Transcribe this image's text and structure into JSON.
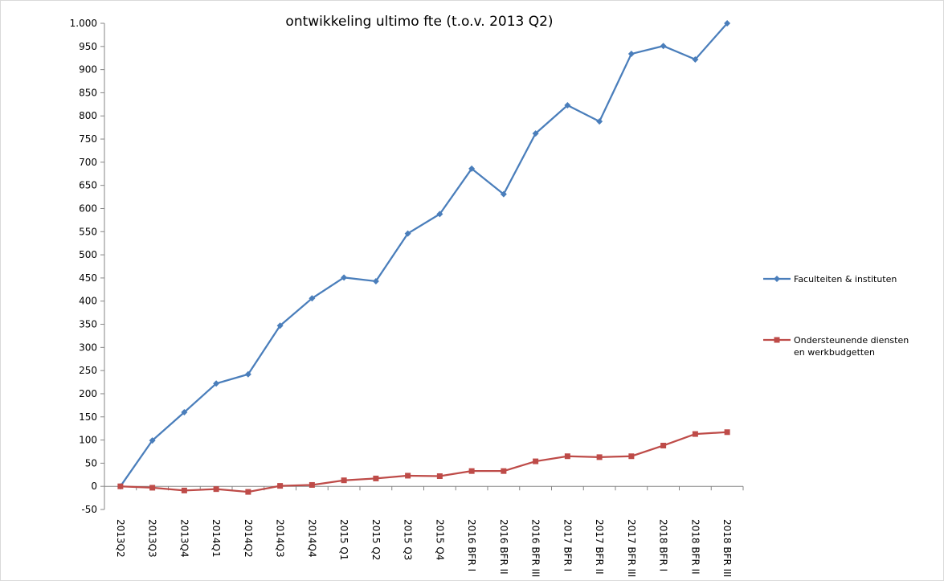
{
  "chart_data": {
    "type": "line",
    "title": "ontwikkeling ultimo fte (t.o.v. 2013 Q2)",
    "categories": [
      "2013Q2",
      "2013Q3",
      "2013Q4",
      "2014Q1",
      "2014Q2",
      "2014Q3",
      "2014Q4",
      "2015 Q1",
      "2015 Q2",
      "2015 Q3",
      "2015 Q4",
      "2016 BFR I",
      "2016 BFR II",
      "2016 BFR III",
      "2017 BFR I",
      "2017 BFR II",
      "2017 BFR III",
      "2018 BFR I",
      "2018 BFR II",
      "2018 BFR III"
    ],
    "series": [
      {
        "name": "Faculteiten & instituten",
        "color": "#4a7ebb",
        "marker": "diamond",
        "values": [
          0,
          99,
          160,
          222,
          242,
          347,
          406,
          451,
          443,
          546,
          588,
          686,
          631,
          762,
          823,
          788,
          934,
          951,
          922,
          1000
        ]
      },
      {
        "name": "Ondersteunende diensten en werkbudgetten",
        "color": "#be4b48",
        "marker": "square",
        "values": [
          0,
          -3,
          -9,
          -6,
          -12,
          1,
          3,
          13,
          17,
          23,
          22,
          33,
          33,
          54,
          65,
          63,
          65,
          88,
          113,
          117
        ]
      }
    ],
    "ylim": [
      -50,
      1000
    ],
    "yticks": [
      -50,
      0,
      50,
      100,
      150,
      200,
      250,
      300,
      350,
      400,
      450,
      500,
      550,
      600,
      650,
      700,
      750,
      800,
      850,
      900,
      950,
      {
        "value": 1000,
        "label": "1.000"
      }
    ],
    "legend": "right"
  }
}
